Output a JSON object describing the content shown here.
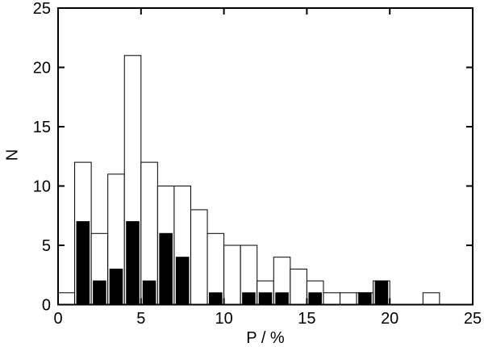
{
  "colors": {
    "background": "#ffffff",
    "axis": "#000000",
    "open_bar_fill": "#ffffff",
    "filled_bar_fill": "#000000",
    "bar_outline": "#000000"
  },
  "chart_data": {
    "type": "bar",
    "subtype": "histogram",
    "title": "",
    "xlabel": "P / %",
    "ylabel": "N",
    "xlim": [
      0,
      25
    ],
    "ylim": [
      0,
      25
    ],
    "grid": false,
    "legend": "none",
    "ticks_mirrored_inward": true,
    "x_ticks": [
      "0",
      "5",
      "10",
      "15",
      "20",
      "25"
    ],
    "x_tick_values": [
      0,
      5,
      10,
      15,
      20,
      25
    ],
    "y_ticks": [
      "0",
      "5",
      "10",
      "15",
      "20",
      "25"
    ],
    "y_tick_values": [
      0,
      5,
      10,
      15,
      20,
      25
    ],
    "bin_start": 0,
    "bin_width": 1,
    "bin_edges": [
      0,
      1,
      2,
      3,
      4,
      5,
      6,
      7,
      8,
      9,
      10,
      11,
      12,
      13,
      14,
      15,
      16,
      17,
      18,
      19,
      20,
      21,
      22,
      23
    ],
    "series": [
      {
        "name": "open-bars",
        "fill": "#ffffff",
        "outline": "#000000",
        "values": [
          1,
          12,
          6,
          11,
          21,
          12,
          10,
          10,
          8,
          6,
          5,
          5,
          2,
          4,
          3,
          2,
          1,
          1,
          1,
          2,
          0,
          0,
          1
        ]
      },
      {
        "name": "filled-bars",
        "fill": "#000000",
        "outline": "#000000",
        "values": [
          0,
          7,
          2,
          3,
          7,
          2,
          6,
          4,
          0,
          1,
          0,
          1,
          1,
          1,
          0,
          1,
          0,
          0,
          1,
          2,
          0,
          0,
          0
        ]
      }
    ]
  }
}
